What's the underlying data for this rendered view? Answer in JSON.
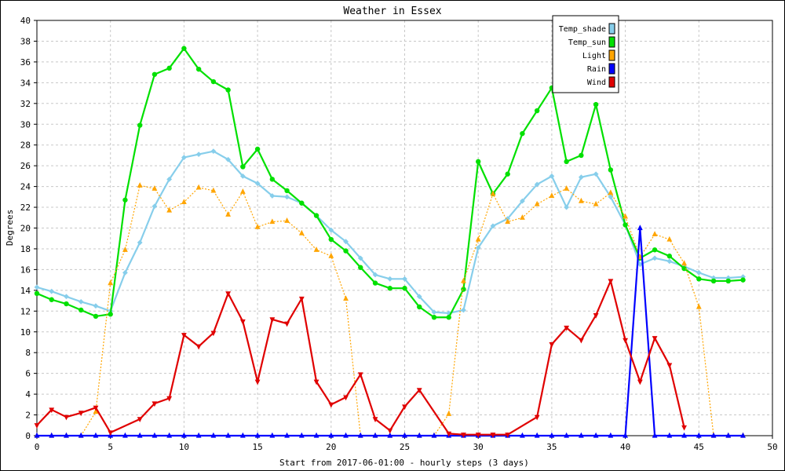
{
  "chart_data": {
    "type": "line",
    "title": "Weather in Essex",
    "xlabel": "Start from 2017-06-01:00 - hourly steps (3 days)",
    "ylabel": "Degrees",
    "xlim": [
      0,
      50
    ],
    "ylim": [
      0,
      40
    ],
    "xticks": [
      0,
      5,
      10,
      15,
      20,
      25,
      30,
      35,
      40,
      45,
      50
    ],
    "yticks": [
      0,
      2,
      4,
      6,
      8,
      10,
      12,
      14,
      16,
      18,
      20,
      22,
      24,
      26,
      28,
      30,
      32,
      34,
      36,
      38,
      40
    ],
    "grid": true,
    "legend_position": "top-right",
    "series": [
      {
        "name": "Temp_shade",
        "color": "#87ceeb",
        "style": "solid",
        "marker": "diamond",
        "x": [
          0,
          1,
          2,
          3,
          4,
          5,
          6,
          7,
          8,
          9,
          10,
          11,
          12,
          13,
          14,
          15,
          16,
          17,
          18,
          19,
          20,
          21,
          22,
          23,
          24,
          25,
          26,
          27,
          28,
          29,
          30,
          31,
          32,
          33,
          34,
          35,
          36,
          37,
          38,
          39,
          40,
          41,
          42,
          43,
          44,
          45,
          46,
          47,
          48
        ],
        "values": [
          14.3,
          13.9,
          13.4,
          12.9,
          12.5,
          12.0,
          15.7,
          18.6,
          22.1,
          24.7,
          26.8,
          27.1,
          27.4,
          26.6,
          25.0,
          24.3,
          23.1,
          23.0,
          22.4,
          21.2,
          19.8,
          18.7,
          17.1,
          15.5,
          15.1,
          15.1,
          13.4,
          11.9,
          11.8,
          12.1,
          18.1,
          20.2,
          20.9,
          22.6,
          24.2,
          25.0,
          22.0,
          24.9,
          25.2,
          23.0,
          20.3,
          16.5,
          17.1,
          16.8,
          16.3,
          15.7,
          15.2,
          15.2,
          15.3
        ]
      },
      {
        "name": "Temp_sun",
        "color": "#00e000",
        "style": "solid",
        "marker": "circle",
        "x": [
          0,
          1,
          2,
          3,
          4,
          5,
          6,
          7,
          8,
          9,
          10,
          11,
          12,
          13,
          14,
          15,
          16,
          17,
          18,
          19,
          20,
          21,
          22,
          23,
          24,
          25,
          26,
          27,
          28,
          29,
          30,
          31,
          32,
          33,
          34,
          35,
          36,
          37,
          38,
          39,
          40,
          41,
          42,
          43,
          44,
          45,
          46,
          47,
          48
        ],
        "values": [
          13.7,
          13.1,
          12.7,
          12.1,
          11.5,
          11.7,
          22.7,
          29.9,
          34.8,
          35.4,
          37.3,
          35.3,
          34.1,
          33.3,
          25.9,
          27.6,
          24.7,
          23.6,
          22.4,
          21.2,
          18.9,
          17.8,
          16.2,
          14.7,
          14.2,
          14.2,
          12.4,
          11.4,
          11.4,
          14.1,
          26.4,
          23.3,
          25.2,
          29.1,
          31.3,
          33.5,
          26.4,
          27.0,
          31.9,
          25.6,
          20.3,
          17.1,
          17.9,
          17.3,
          16.1,
          15.1,
          14.9,
          14.9,
          15.0
        ]
      },
      {
        "name": "Light",
        "color": "#ffa500",
        "style": "dotted",
        "marker": "triangle-up",
        "x": [
          0,
          1,
          2,
          3,
          4,
          5,
          6,
          7,
          8,
          9,
          10,
          11,
          12,
          13,
          14,
          15,
          16,
          17,
          18,
          19,
          20,
          21,
          22,
          23,
          24,
          25,
          26,
          27,
          28,
          29,
          30,
          31,
          32,
          33,
          34,
          35,
          36,
          37,
          38,
          39,
          40,
          41,
          42,
          43,
          44,
          45,
          46,
          47,
          48
        ],
        "values": [
          0,
          0,
          0,
          0,
          2.3,
          14.7,
          17.9,
          24.1,
          23.8,
          21.7,
          22.5,
          23.9,
          23.6,
          21.3,
          23.5,
          20.1,
          20.6,
          20.7,
          19.5,
          17.9,
          17.3,
          13.2,
          0,
          0,
          0,
          0,
          0,
          0,
          2.1,
          14.9,
          18.9,
          23.3,
          20.6,
          21.0,
          22.3,
          23.1,
          23.8,
          22.6,
          22.3,
          23.4,
          21.1,
          17.2,
          19.4,
          18.9,
          16.6,
          12.4,
          0,
          0,
          0
        ]
      },
      {
        "name": "Rain",
        "color": "#0000ff",
        "style": "solid",
        "marker": "triangle-up",
        "x": [
          0,
          1,
          2,
          3,
          4,
          5,
          6,
          7,
          8,
          9,
          10,
          11,
          12,
          13,
          14,
          15,
          16,
          17,
          18,
          19,
          20,
          21,
          22,
          23,
          24,
          25,
          26,
          27,
          28,
          29,
          30,
          31,
          32,
          33,
          34,
          35,
          36,
          37,
          38,
          39,
          40,
          41,
          42,
          43,
          44,
          45,
          46,
          47,
          48
        ],
        "values": [
          0,
          0,
          0,
          0,
          0,
          0,
          0,
          0,
          0,
          0,
          0,
          0,
          0,
          0,
          0,
          0,
          0,
          0,
          0,
          0,
          0,
          0,
          0,
          0,
          0,
          0,
          0,
          0,
          0,
          0,
          0,
          0,
          0,
          0,
          0,
          0,
          0,
          0,
          0,
          0,
          0,
          20,
          0,
          0,
          0,
          0,
          0,
          0,
          0
        ]
      },
      {
        "name": "Wind",
        "color": "#e00000",
        "style": "solid",
        "marker": "triangle-down",
        "x": [
          0,
          1,
          2,
          3,
          4,
          5,
          7,
          8,
          9,
          10,
          11,
          12,
          13,
          14,
          15,
          16,
          17,
          18,
          19,
          20,
          21,
          22,
          23,
          24,
          25,
          26,
          28,
          29,
          30,
          31,
          32,
          34,
          35,
          36,
          37,
          38,
          39,
          40,
          41,
          42,
          43,
          44
        ],
        "values": [
          1.0,
          2.5,
          1.8,
          2.2,
          2.7,
          0.3,
          1.6,
          3.1,
          3.6,
          9.7,
          8.6,
          9.9,
          13.7,
          11.0,
          5.2,
          11.2,
          10.8,
          13.2,
          5.2,
          3.0,
          3.7,
          5.9,
          1.6,
          0.5,
          2.8,
          4.4,
          0.2,
          0.1,
          0.1,
          0.1,
          0.1,
          1.8,
          8.8,
          10.4,
          9.2,
          11.6,
          14.9,
          9.2,
          5.2,
          9.4,
          6.8,
          0.8
        ]
      }
    ]
  }
}
